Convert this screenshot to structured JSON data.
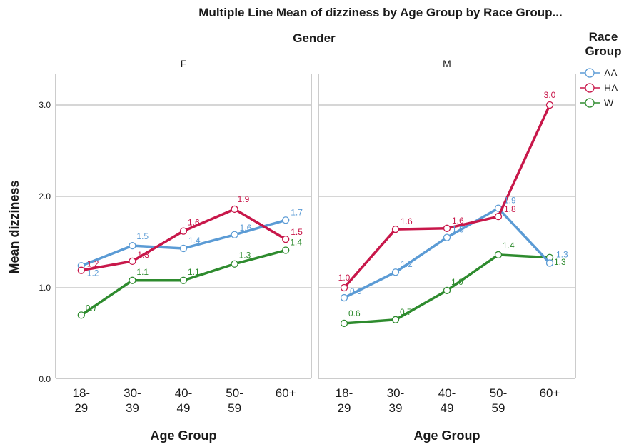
{
  "chart_data": {
    "type": "line",
    "title": "Multiple Line Mean of dizziness by Age Group by Race Group...",
    "facet_title": "Gender",
    "xlabel": "Age Group",
    "ylabel": "Mean dizziness",
    "ylim": [
      0,
      3.0
    ],
    "yticks": [
      "0.0",
      "1.0",
      "2.0",
      "3.0"
    ],
    "grid": true,
    "categories": [
      [
        "18-",
        "29"
      ],
      [
        "30-",
        "39"
      ],
      [
        "40-",
        "49"
      ],
      [
        "50-",
        "59"
      ],
      [
        "60+",
        ""
      ]
    ],
    "legend": {
      "title": [
        "Race",
        "Group"
      ],
      "placement": "top-right"
    },
    "colors": {
      "AA": "#5b9bd5",
      "HA": "#c8174a",
      "W": "#2e8b2e"
    },
    "panels": [
      {
        "label": "F",
        "series": [
          {
            "name": "AA",
            "values": [
              1.24,
              1.46,
              1.43,
              1.58,
              1.74
            ],
            "labels": [
              "1.2",
              "1.5",
              "1.4",
              "1.6",
              "1.7"
            ]
          },
          {
            "name": "HA",
            "values": [
              1.19,
              1.29,
              1.62,
              1.86,
              1.53
            ],
            "labels": [
              "1.2",
              "1.3",
              "1.6",
              "1.9",
              "1.5"
            ]
          },
          {
            "name": "W",
            "values": [
              0.7,
              1.08,
              1.08,
              1.26,
              1.41
            ],
            "labels": [
              "0.7",
              "1.1",
              "1.1",
              "1.3",
              "1.4"
            ]
          }
        ]
      },
      {
        "label": "M",
        "series": [
          {
            "name": "AA",
            "values": [
              0.89,
              1.17,
              1.55,
              1.87,
              1.27
            ],
            "labels": [
              "0.9",
              "1.2",
              "1.5",
              "1.9",
              "1.3"
            ]
          },
          {
            "name": "HA",
            "values": [
              1.0,
              1.64,
              1.65,
              1.78,
              3.0
            ],
            "labels": [
              "1.0",
              "1.6",
              "1.6",
              "1.8",
              "3.0"
            ]
          },
          {
            "name": "W",
            "values": [
              0.61,
              0.65,
              0.97,
              1.36,
              1.33
            ],
            "labels": [
              "0.6",
              "0.7",
              "1.0",
              "1.4",
              "1.3"
            ]
          }
        ]
      }
    ]
  }
}
